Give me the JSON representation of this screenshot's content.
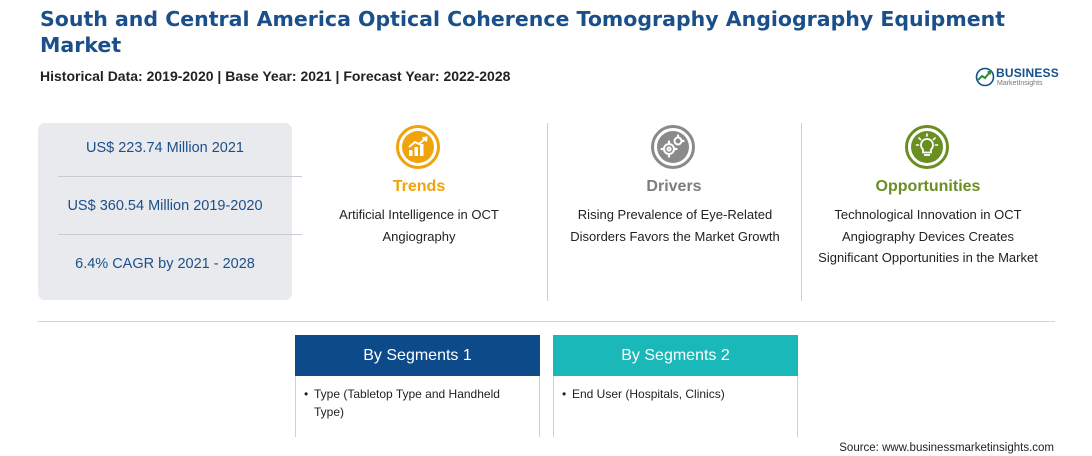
{
  "header": {
    "title": "South and Central America Optical Coherence Tomography Angiography Equipment Market",
    "subtitle": "Historical Data: 2019-2020 | Base Year: 2021 | Forecast Year: 2022-2028"
  },
  "logo": {
    "brand": "BUSINESS",
    "tagline": "MarketInsights"
  },
  "stats": [
    "US$ 223.74 Million 2021",
    "US$ 360.54 Million 2019-2020",
    "6.4% CAGR by 2021 - 2028"
  ],
  "columns": {
    "trends": {
      "title": "Trends",
      "text": "Artificial Intelligence in OCT Angiography",
      "color": "#f0a30a",
      "icon": "growth-chart-icon"
    },
    "drivers": {
      "title": "Drivers",
      "text": "Rising Prevalence of Eye-Related Disorders Favors the Market Growth",
      "color": "#7d7d7d",
      "icon": "gears-icon"
    },
    "opportunities": {
      "title": "Opportunities",
      "text": "Technological Innovation in OCT Angiography Devices Creates Significant Opportunities in the Market",
      "color": "#6b8e23",
      "icon": "lightbulb-icon"
    }
  },
  "segments": [
    {
      "title": "By Segments 1",
      "item": "Type (Tabletop Type and Handheld Type)",
      "color": "#0d4a8a"
    },
    {
      "title": "By Segments 2",
      "item": "End User (Hospitals, Clinics)",
      "color": "#1ab8b8"
    }
  ],
  "source": "Source: www.businessmarketinsights.com"
}
